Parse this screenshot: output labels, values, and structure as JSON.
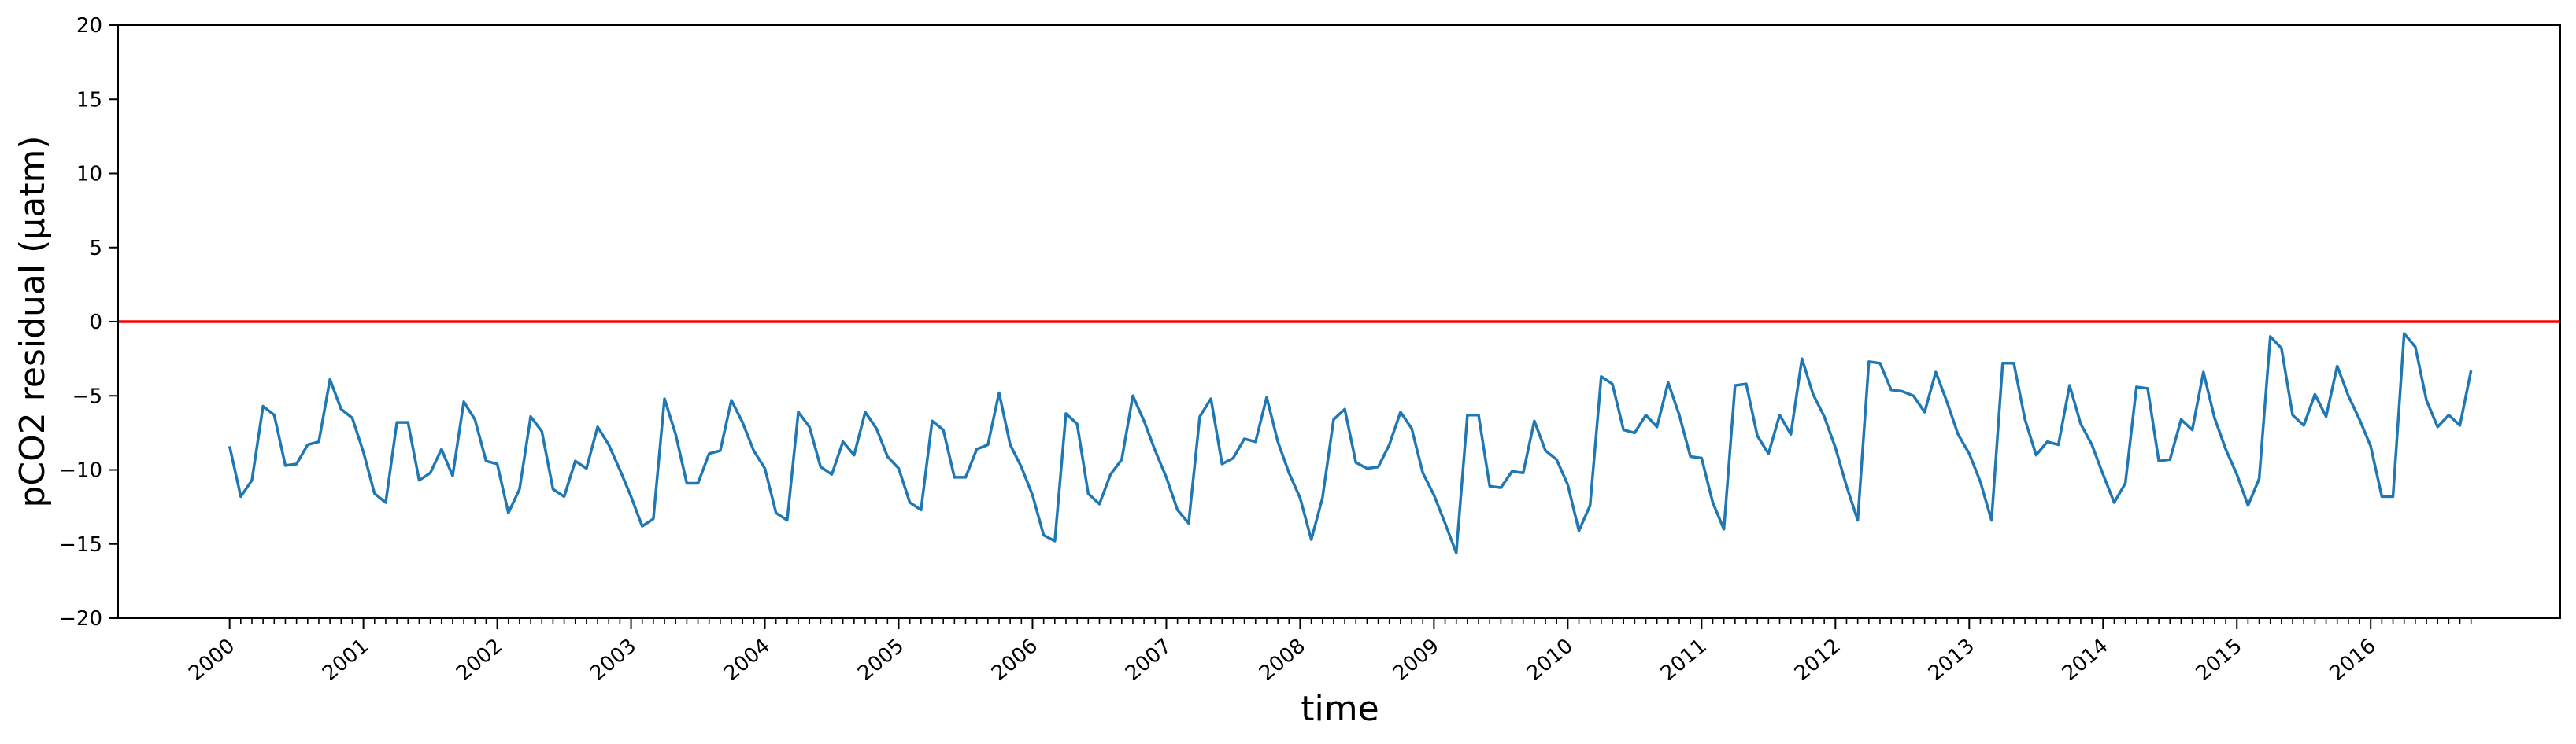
{
  "chart_data": {
    "type": "line",
    "title": "",
    "xlabel": "time",
    "ylabel": "pCO2 residual (µatm)",
    "ylim": [
      -20,
      20
    ],
    "yticks": [
      -20,
      -15,
      -10,
      -5,
      0,
      5,
      10,
      15,
      20
    ],
    "xlim": [
      "1999-03",
      "2017-06"
    ],
    "x_major_ticks": [
      "2000",
      "2001",
      "2002",
      "2003",
      "2004",
      "2005",
      "2006",
      "2007",
      "2008",
      "2009",
      "2010",
      "2011",
      "2012",
      "2013",
      "2014",
      "2015",
      "2016"
    ],
    "x_minor_ticks": "monthly",
    "grid": false,
    "reference_line": {
      "y": 0,
      "color": "#ff0000"
    },
    "series": [
      {
        "color": "#1f77b4",
        "start": "2000-01",
        "frequency": "monthly",
        "values": [
          -8.4,
          -11.8,
          -10.7,
          -5.7,
          -6.3,
          -9.7,
          -9.6,
          -8.3,
          -8.1,
          -3.9,
          -5.9,
          -6.5,
          -8.8,
          -11.6,
          -12.2,
          -6.8,
          -6.8,
          -10.7,
          -10.2,
          -8.6,
          -10.4,
          -5.4,
          -6.6,
          -9.4,
          -9.6,
          -12.9,
          -11.3,
          -6.4,
          -7.4,
          -11.3,
          -11.8,
          -9.4,
          -9.9,
          -7.1,
          -8.3,
          -10.0,
          -11.8,
          -13.8,
          -13.3,
          -5.2,
          -7.6,
          -10.9,
          -10.9,
          -8.9,
          -8.7,
          -5.3,
          -6.8,
          -8.7,
          -9.9,
          -12.9,
          -13.4,
          -6.1,
          -7.1,
          -9.8,
          -10.3,
          -8.1,
          -9.0,
          -6.1,
          -7.2,
          -9.1,
          -9.9,
          -12.2,
          -12.7,
          -6.7,
          -7.3,
          -10.5,
          -10.5,
          -8.6,
          -8.3,
          -4.8,
          -8.3,
          -9.8,
          -11.7,
          -14.4,
          -14.8,
          -6.2,
          -6.9,
          -11.6,
          -12.3,
          -10.3,
          -9.3,
          -5.0,
          -6.7,
          -8.7,
          -10.5,
          -12.7,
          -13.6,
          -6.4,
          -5.2,
          -9.6,
          -9.2,
          -7.9,
          -8.1,
          -5.1,
          -8.1,
          -10.2,
          -11.9,
          -14.7,
          -11.9,
          -6.6,
          -5.9,
          -9.5,
          -9.9,
          -9.8,
          -8.3,
          -6.1,
          -7.2,
          -10.2,
          -11.7,
          -13.6,
          -15.6,
          -6.3,
          -6.3,
          -11.1,
          -11.2,
          -10.1,
          -10.2,
          -6.7,
          -8.7,
          -9.3,
          -11.0,
          -14.1,
          -12.4,
          -3.7,
          -4.2,
          -7.3,
          -7.5,
          -6.3,
          -7.1,
          -4.1,
          -6.3,
          -9.1,
          -9.2,
          -12.2,
          -14.0,
          -4.3,
          -4.2,
          -7.7,
          -8.9,
          -6.3,
          -7.6,
          -2.5,
          -4.9,
          -6.4,
          -8.5,
          -11.1,
          -13.4,
          -2.7,
          -2.8,
          -4.6,
          -4.7,
          -5.0,
          -6.1,
          -3.4,
          -5.4,
          -7.6,
          -8.9,
          -10.8,
          -13.4,
          -2.8,
          -2.8,
          -6.6,
          -9.0,
          -8.1,
          -8.3,
          -4.3,
          -6.9,
          -8.3,
          -10.3,
          -12.2,
          -10.9,
          -4.4,
          -4.5,
          -9.4,
          -9.3,
          -6.6,
          -7.3,
          -3.4,
          -6.5,
          -8.6,
          -10.3,
          -12.4,
          -10.6,
          -1.0,
          -1.8,
          -6.3,
          -7.0,
          -4.9,
          -6.4,
          -3.0,
          -5.0,
          -6.6,
          -8.4,
          -11.8,
          -11.8,
          -0.8,
          -1.7,
          -5.3,
          -7.1,
          -6.3,
          -7.0,
          -3.3
        ]
      }
    ]
  }
}
